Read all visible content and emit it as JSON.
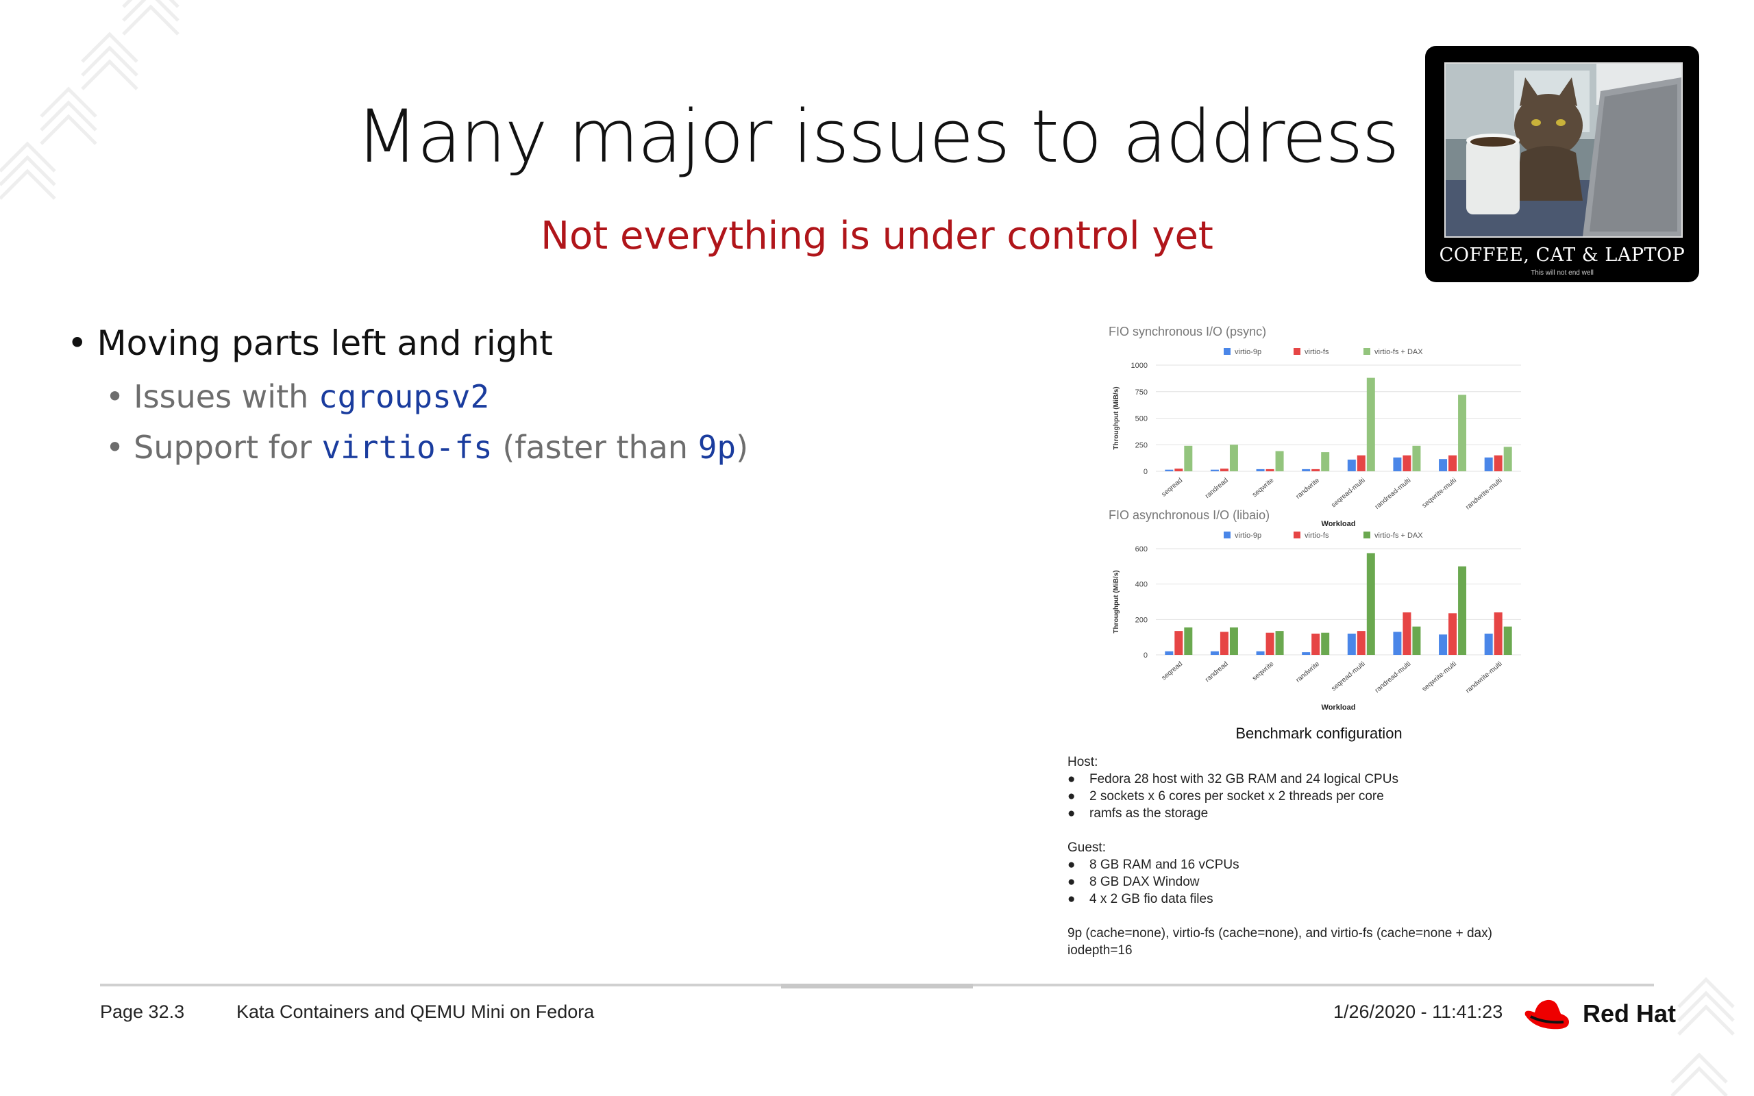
{
  "slide": {
    "title": "Many major issues to address",
    "subtitle": "Not everything is under control yet"
  },
  "poster": {
    "caption": "COFFEE, CAT & LAPTOP",
    "tagline": "This will not end well"
  },
  "bullets": {
    "b1": "Moving parts left and right",
    "b2_prefix": "Issues with ",
    "b2_code": "cgroupsv2",
    "b3_prefix": "Support for ",
    "b3_code": "virtio-fs",
    "b3_middle": " (faster than ",
    "b3_code2": "9p",
    "b3_suffix": ")"
  },
  "chart_data": [
    {
      "type": "bar",
      "title": "FIO synchronous I/O (psync)",
      "xlabel": "Workload",
      "ylabel": "Throughput (MiB/s)",
      "ylim": [
        0,
        1000
      ],
      "yticks": [
        0,
        250,
        500,
        750,
        1000
      ],
      "legend": "top",
      "categories": [
        "seqread",
        "randread",
        "seqwrite",
        "randwrite",
        "seqread-multi",
        "randread-multi",
        "seqwrite-multi",
        "randwrite-multi"
      ],
      "series": [
        {
          "name": "virtio-9p",
          "color": "#4a86e8",
          "values": [
            15,
            15,
            20,
            20,
            110,
            130,
            115,
            130
          ]
        },
        {
          "name": "virtio-fs",
          "color": "#e64545",
          "values": [
            25,
            25,
            20,
            20,
            150,
            150,
            150,
            150
          ]
        },
        {
          "name": "virtio-fs + DAX",
          "color": "#93c47d",
          "values": [
            240,
            250,
            190,
            180,
            880,
            240,
            720,
            230
          ]
        }
      ]
    },
    {
      "type": "bar",
      "title": "FIO asynchronous I/O (libaio)",
      "xlabel": "Workload",
      "ylabel": "Throughput (MiB/s)",
      "ylim": [
        0,
        600
      ],
      "yticks": [
        0,
        200,
        400,
        600
      ],
      "legend": "top",
      "categories": [
        "seqread",
        "randread",
        "seqwrite",
        "randwrite",
        "seqread-multi",
        "randread-multi",
        "seqwrite-multi",
        "randwrite-multi"
      ],
      "series": [
        {
          "name": "virtio-9p",
          "color": "#4a86e8",
          "values": [
            20,
            20,
            20,
            15,
            120,
            130,
            115,
            120
          ]
        },
        {
          "name": "virtio-fs",
          "color": "#e64545",
          "values": [
            135,
            130,
            125,
            120,
            135,
            240,
            235,
            240
          ]
        },
        {
          "name": "virtio-fs + DAX",
          "color": "#6aa84f",
          "values": [
            155,
            155,
            135,
            125,
            575,
            160,
            500,
            160
          ]
        }
      ]
    }
  ],
  "benchmark": {
    "caption": "Benchmark configuration",
    "host_label": "Host:",
    "host_items": [
      "Fedora 28 host with 32 GB RAM and 24 logical CPUs",
      "2 sockets x 6 cores per socket x 2 threads per core",
      "ramfs as the storage"
    ],
    "guest_label": "Guest:",
    "guest_items": [
      "8 GB RAM and 16 vCPUs",
      "8 GB DAX Window",
      "4 x 2 GB fio data files"
    ],
    "note1": "9p (cache=none), virtio-fs (cache=none), and virtio-fs (cache=none + dax)",
    "note2": "iodepth=16"
  },
  "footer": {
    "page": "Page 32.3",
    "presentation": "Kata Containers and QEMU Mini on Fedora",
    "datetime": "1/26/2020 - 11:41:23",
    "brand": "Red Hat"
  },
  "colors": {
    "subtitle": "#b0151a",
    "code": "#1a3c9e",
    "brand_red": "#ee0000"
  }
}
